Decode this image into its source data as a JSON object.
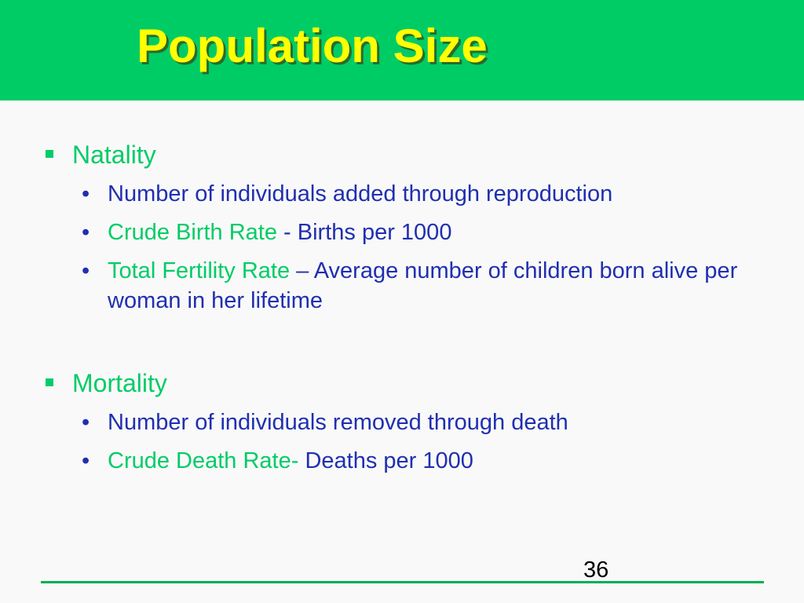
{
  "slide": {
    "title": "Population Size",
    "page_number": "36"
  },
  "sections": [
    {
      "heading": "Natality",
      "items": [
        {
          "term": "",
          "text": "Number of individuals added through reproduction"
        },
        {
          "term": "Crude Birth Rate",
          "text": " - Births per 1000"
        },
        {
          "term": "Total Fertility Rate",
          "text": " – Average number of children born alive per woman in her lifetime"
        }
      ]
    },
    {
      "heading": "Mortality",
      "items": [
        {
          "term": "",
          "text": "Number of individuals removed through death"
        },
        {
          "term": "Crude Death Rate-",
          "text": " Deaths per 1000"
        }
      ]
    }
  ],
  "colors": {
    "title_bar": "#00cc66",
    "title_text": "#ffff00",
    "heading": "#00cc66",
    "body_text": "#1f2fb0",
    "footer_line": "#00b050"
  }
}
